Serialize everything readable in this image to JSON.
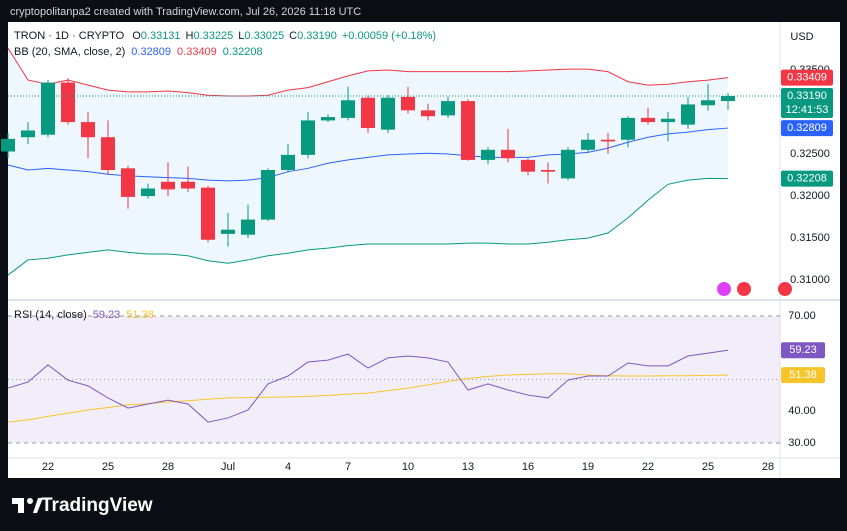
{
  "header": {
    "watermark": "cryptopolitanpa2 created with TradingView.com, Jul 26, 2026 11:18 UTC",
    "symbol": "TRON · 1D · CRYPTO",
    "ohlc": [
      {
        "key": "O",
        "value": "0.33131"
      },
      {
        "key": "H",
        "value": "0.33225"
      },
      {
        "key": "L",
        "value": "0.33025"
      },
      {
        "key": "C",
        "value": "0.33190"
      }
    ],
    "change": "+0.00059 (+0.18%)",
    "currency": "USD",
    "countdown": "12:41:53",
    "logo": "TradingView"
  },
  "chart_data": [
    {
      "type": "candlestick",
      "categories": [
        null,
        null,
        "22",
        null,
        null,
        "25",
        null,
        null,
        "28",
        null,
        null,
        "Jul",
        null,
        null,
        "4",
        null,
        null,
        "7",
        null,
        null,
        "10",
        null,
        null,
        "13",
        null,
        null,
        "16",
        null,
        null,
        "19",
        null,
        null,
        "22",
        null,
        null,
        "25",
        null,
        null,
        "28"
      ],
      "open": [
        0.3253,
        0.327,
        0.3273,
        0.3335,
        0.3288,
        0.327,
        0.3233,
        0.32,
        0.3217,
        0.3217,
        0.321,
        0.3155,
        0.3154,
        0.3172,
        0.3231,
        0.3249,
        0.329,
        0.3293,
        0.3317,
        0.3279,
        0.3318,
        0.3302,
        0.3296,
        0.3313,
        0.3243,
        0.3255,
        0.3243,
        0.3231,
        0.3221,
        0.3255,
        0.3267,
        0.3267,
        0.3293,
        0.3288,
        0.3285,
        0.3308,
        0.33131,
        null,
        null
      ],
      "high": [
        0.3275,
        0.3288,
        0.3338,
        0.334,
        0.33,
        0.329,
        0.3236,
        0.3215,
        0.324,
        0.3235,
        0.3212,
        0.318,
        0.319,
        0.3233,
        0.3262,
        0.33,
        0.3297,
        0.333,
        0.332,
        0.332,
        0.333,
        0.331,
        0.3318,
        0.3315,
        0.3258,
        0.328,
        0.3245,
        0.324,
        0.3258,
        0.3275,
        0.3275,
        0.3295,
        0.3305,
        0.33,
        0.3318,
        0.3333,
        0.33225,
        null,
        null
      ],
      "low": [
        0.3245,
        0.3262,
        0.327,
        0.3285,
        0.3245,
        0.3225,
        0.3185,
        0.3197,
        0.32,
        0.3205,
        0.3145,
        0.314,
        0.315,
        0.317,
        0.3228,
        0.3245,
        0.3288,
        0.329,
        0.3275,
        0.3275,
        0.3298,
        0.329,
        0.3293,
        0.3242,
        0.3238,
        0.324,
        0.3225,
        0.3215,
        0.3219,
        0.3252,
        0.325,
        0.3258,
        0.3285,
        0.3265,
        0.328,
        0.3302,
        0.33025,
        null,
        null
      ],
      "close": [
        0.3268,
        0.3278,
        0.3335,
        0.3288,
        0.327,
        0.3231,
        0.3199,
        0.3209,
        0.3208,
        0.3209,
        0.3148,
        0.316,
        0.3172,
        0.3231,
        0.3249,
        0.329,
        0.3294,
        0.3314,
        0.3281,
        0.3317,
        0.3302,
        0.3295,
        0.3313,
        0.3243,
        0.3255,
        0.3245,
        0.3229,
        0.3229,
        0.3255,
        0.3267,
        0.3265,
        0.3293,
        0.3288,
        0.3292,
        0.3309,
        0.3314,
        0.3319,
        null,
        null
      ],
      "up_color": "#089981",
      "down_color": "#f23645",
      "ylim": [
        0.30787,
        0.34071
      ],
      "yticks": [
        {
          "value": 0.335,
          "label": "0.33500"
        },
        {
          "value": 0.325,
          "label": "0.32500"
        },
        {
          "value": 0.32,
          "label": "0.32000"
        },
        {
          "value": 0.315,
          "label": "0.31500"
        },
        {
          "value": 0.31,
          "label": "0.31000"
        }
      ],
      "indicator": {
        "name": "BB (20, SMA, close, 2)",
        "fill": "#2196f3",
        "series": [
          {
            "color": "#2962ff",
            "values": [
              0.3237,
              0.3231,
              0.3233,
              0.3231,
              0.3229,
              0.3226,
              0.3224,
              0.3223,
              0.3222,
              0.3221,
              0.3219,
              0.3218,
              0.3219,
              0.3222,
              0.3229,
              0.3233,
              0.3239,
              0.3243,
              0.3246,
              0.3249,
              0.325,
              0.3251,
              0.325,
              0.3248,
              0.3246,
              0.3246,
              0.3246,
              0.3249,
              0.325,
              0.3252,
              0.3257,
              0.3264,
              0.327,
              0.3274,
              0.3276,
              0.3279,
              0.32809,
              null,
              null
            ]
          },
          {
            "color": "#f23645",
            "values": [
              0.3376,
              0.3338,
              0.3333,
              0.3338,
              0.3332,
              0.3326,
              0.3324,
              0.3324,
              0.3325,
              0.3323,
              0.332,
              0.3319,
              0.3319,
              0.332,
              0.3326,
              0.3329,
              0.3336,
              0.3343,
              0.3349,
              0.335,
              0.3348,
              0.3348,
              0.3348,
              0.3348,
              0.3348,
              0.3348,
              0.3349,
              0.335,
              0.3351,
              0.3351,
              0.3348,
              0.3336,
              0.3332,
              0.3333,
              0.3336,
              0.3338,
              0.33409,
              null,
              null
            ]
          },
          {
            "color": "#089981",
            "values": [
              0.3106,
              0.3124,
              0.3126,
              0.313,
              0.3133,
              0.3136,
              0.3133,
              0.3131,
              0.3131,
              0.3129,
              0.3123,
              0.312,
              0.3124,
              0.3129,
              0.3132,
              0.3136,
              0.3138,
              0.3141,
              0.3143,
              0.3143,
              0.3143,
              0.3143,
              0.3143,
              0.3144,
              0.3144,
              0.3143,
              0.3143,
              0.3145,
              0.3148,
              0.315,
              0.3156,
              0.3174,
              0.3195,
              0.3214,
              0.3219,
              0.3221,
              0.32208,
              null,
              null
            ]
          }
        ]
      }
    },
    {
      "type": "line",
      "name": "RSI (14, close)",
      "ylim": [
        25.28,
        74.41
      ],
      "yticks": [
        {
          "value": 70,
          "label": "70.00"
        },
        {
          "value": 40,
          "label": "40.00"
        },
        {
          "value": 30,
          "label": "30.00"
        }
      ],
      "hlines": [
        70,
        50,
        30
      ],
      "band_color": "#7e57c2",
      "series": [
        {
          "color": "#7e57c2",
          "values": [
            47.3,
            49.2,
            54.6,
            49.8,
            48,
            44.2,
            41,
            42.3,
            43.5,
            42.3,
            36.6,
            37.9,
            40.4,
            48.6,
            51.1,
            55.5,
            56.1,
            58,
            53.6,
            56.8,
            57.4,
            56.8,
            55.5,
            46.7,
            48.6,
            46.7,
            45.1,
            44.2,
            49.8,
            51.1,
            51.1,
            55.2,
            54.3,
            54.3,
            57.4,
            58.3,
            59.23,
            null,
            null
          ]
        },
        {
          "color": "#f7c52b",
          "values": [
            36.6,
            37.3,
            38.4,
            39.4,
            40.4,
            41.2,
            42,
            42.4,
            42.9,
            43.3,
            43.8,
            44.2,
            44.3,
            44.4,
            44.5,
            44.7,
            45,
            45.4,
            45.7,
            46.5,
            47.3,
            48.3,
            49.4,
            50.3,
            51,
            51.4,
            51.6,
            51.8,
            51.8,
            51.4,
            51.2,
            51.1,
            51.1,
            51.2,
            51.2,
            51.3,
            51.38,
            null,
            null
          ]
        }
      ]
    }
  ]
}
